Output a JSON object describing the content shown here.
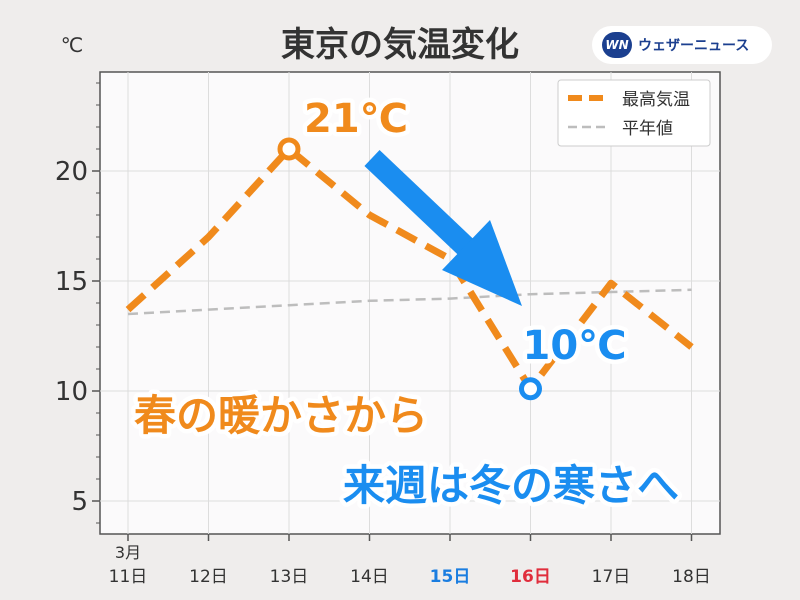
{
  "title": "東京の気温変化",
  "unit_label": "℃",
  "logo": {
    "mark": "WN",
    "text": "ウェザーニュース"
  },
  "chart_data": {
    "type": "line",
    "x_top_label": "3月",
    "categories": [
      "11日",
      "12日",
      "13日",
      "14日",
      "15日",
      "16日",
      "17日",
      "18日"
    ],
    "category_colors": [
      "#333333",
      "#333333",
      "#333333",
      "#333333",
      "#1a7de0",
      "#e02d3c",
      "#333333",
      "#333333"
    ],
    "ylim": [
      3.5,
      24.5
    ],
    "yticks": [
      5,
      10,
      15,
      20
    ],
    "grid": true,
    "legend_position": "top-right",
    "series": [
      {
        "name": "最高気温",
        "values": [
          13.7,
          17,
          21,
          18,
          16,
          10.1,
          14.9,
          12
        ],
        "color": "#f08a1c",
        "style": "dashed-thick"
      },
      {
        "name": "平年値",
        "values": [
          13.5,
          13.7,
          13.9,
          14.1,
          14.2,
          14.4,
          14.5,
          14.6
        ],
        "color": "#bdbdbd",
        "style": "dashed-thin"
      }
    ],
    "annotations": [
      {
        "text": "21℃",
        "color": "#f08a1c",
        "kind": "max"
      },
      {
        "text": "10℃",
        "color": "#1a8df0",
        "kind": "min"
      },
      {
        "text": "春の暖かさから",
        "color": "#f08a1c",
        "kind": "caption"
      },
      {
        "text": "来週は冬の寒さへ",
        "color": "#1a8df0",
        "kind": "caption"
      }
    ]
  }
}
